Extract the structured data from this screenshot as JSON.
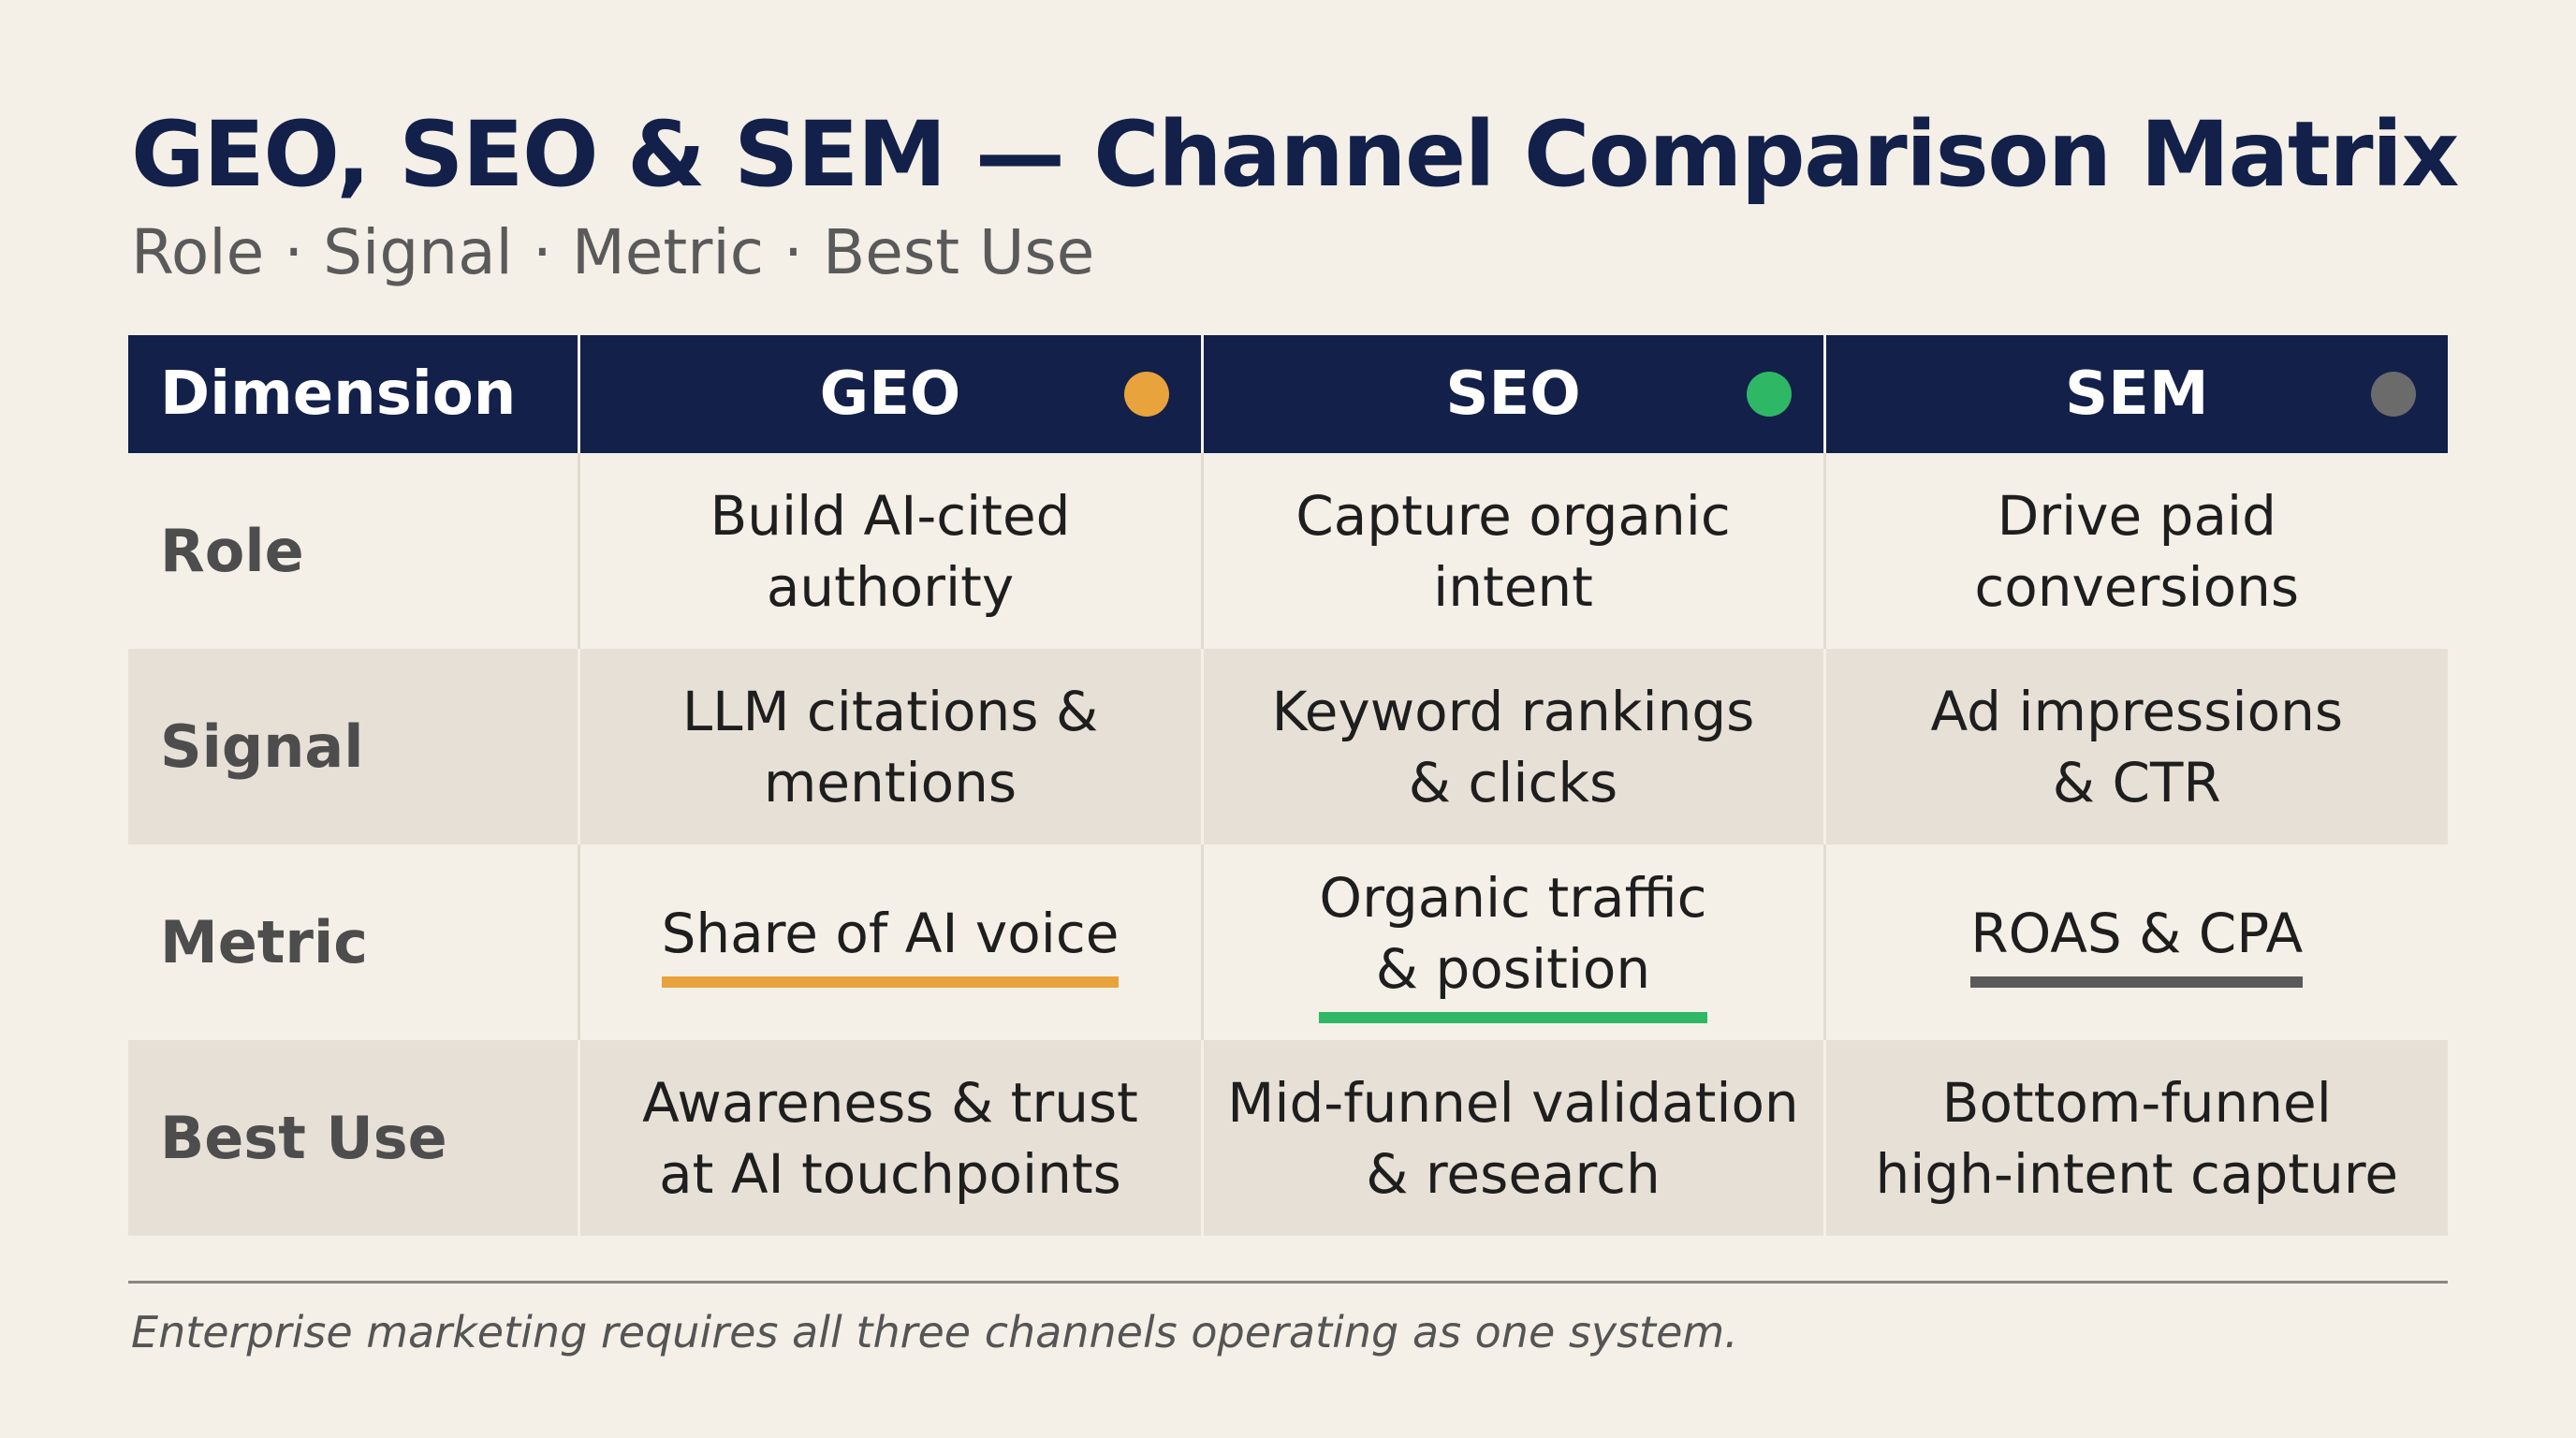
{
  "header": {
    "title": "GEO, SEO & SEM — Channel Comparison Matrix",
    "subtitle": "Role · Signal · Metric · Best Use"
  },
  "table": {
    "dimension_header": "Dimension",
    "columns": [
      {
        "label": "GEO",
        "dot_color": "#e8a33c",
        "accent": "#e8a33c"
      },
      {
        "label": "SEO",
        "dot_color": "#2eb866",
        "accent": "#2eb866"
      },
      {
        "label": "SEM",
        "dot_color": "#6b6b6b",
        "accent": "#5a5a5a"
      }
    ],
    "rows": [
      {
        "label": "Role",
        "cells": [
          "Build AI-cited\nauthority",
          "Capture organic\nintent",
          "Drive paid\nconversions"
        ]
      },
      {
        "label": "Signal",
        "cells": [
          "LLM citations &\nmentions",
          "Keyword rankings\n& clicks",
          "Ad impressions\n& CTR"
        ]
      },
      {
        "label": "Metric",
        "cells": [
          "Share of AI voice",
          "Organic traffic\n& position",
          "ROAS & CPA"
        ]
      },
      {
        "label": "Best Use",
        "cells": [
          "Awareness & trust\nat AI touchpoints",
          "Mid-funnel validation\n& research",
          "Bottom-funnel\nhigh-intent capture"
        ]
      }
    ]
  },
  "footer": {
    "note": "Enterprise marketing requires all three channels operating as one system."
  }
}
